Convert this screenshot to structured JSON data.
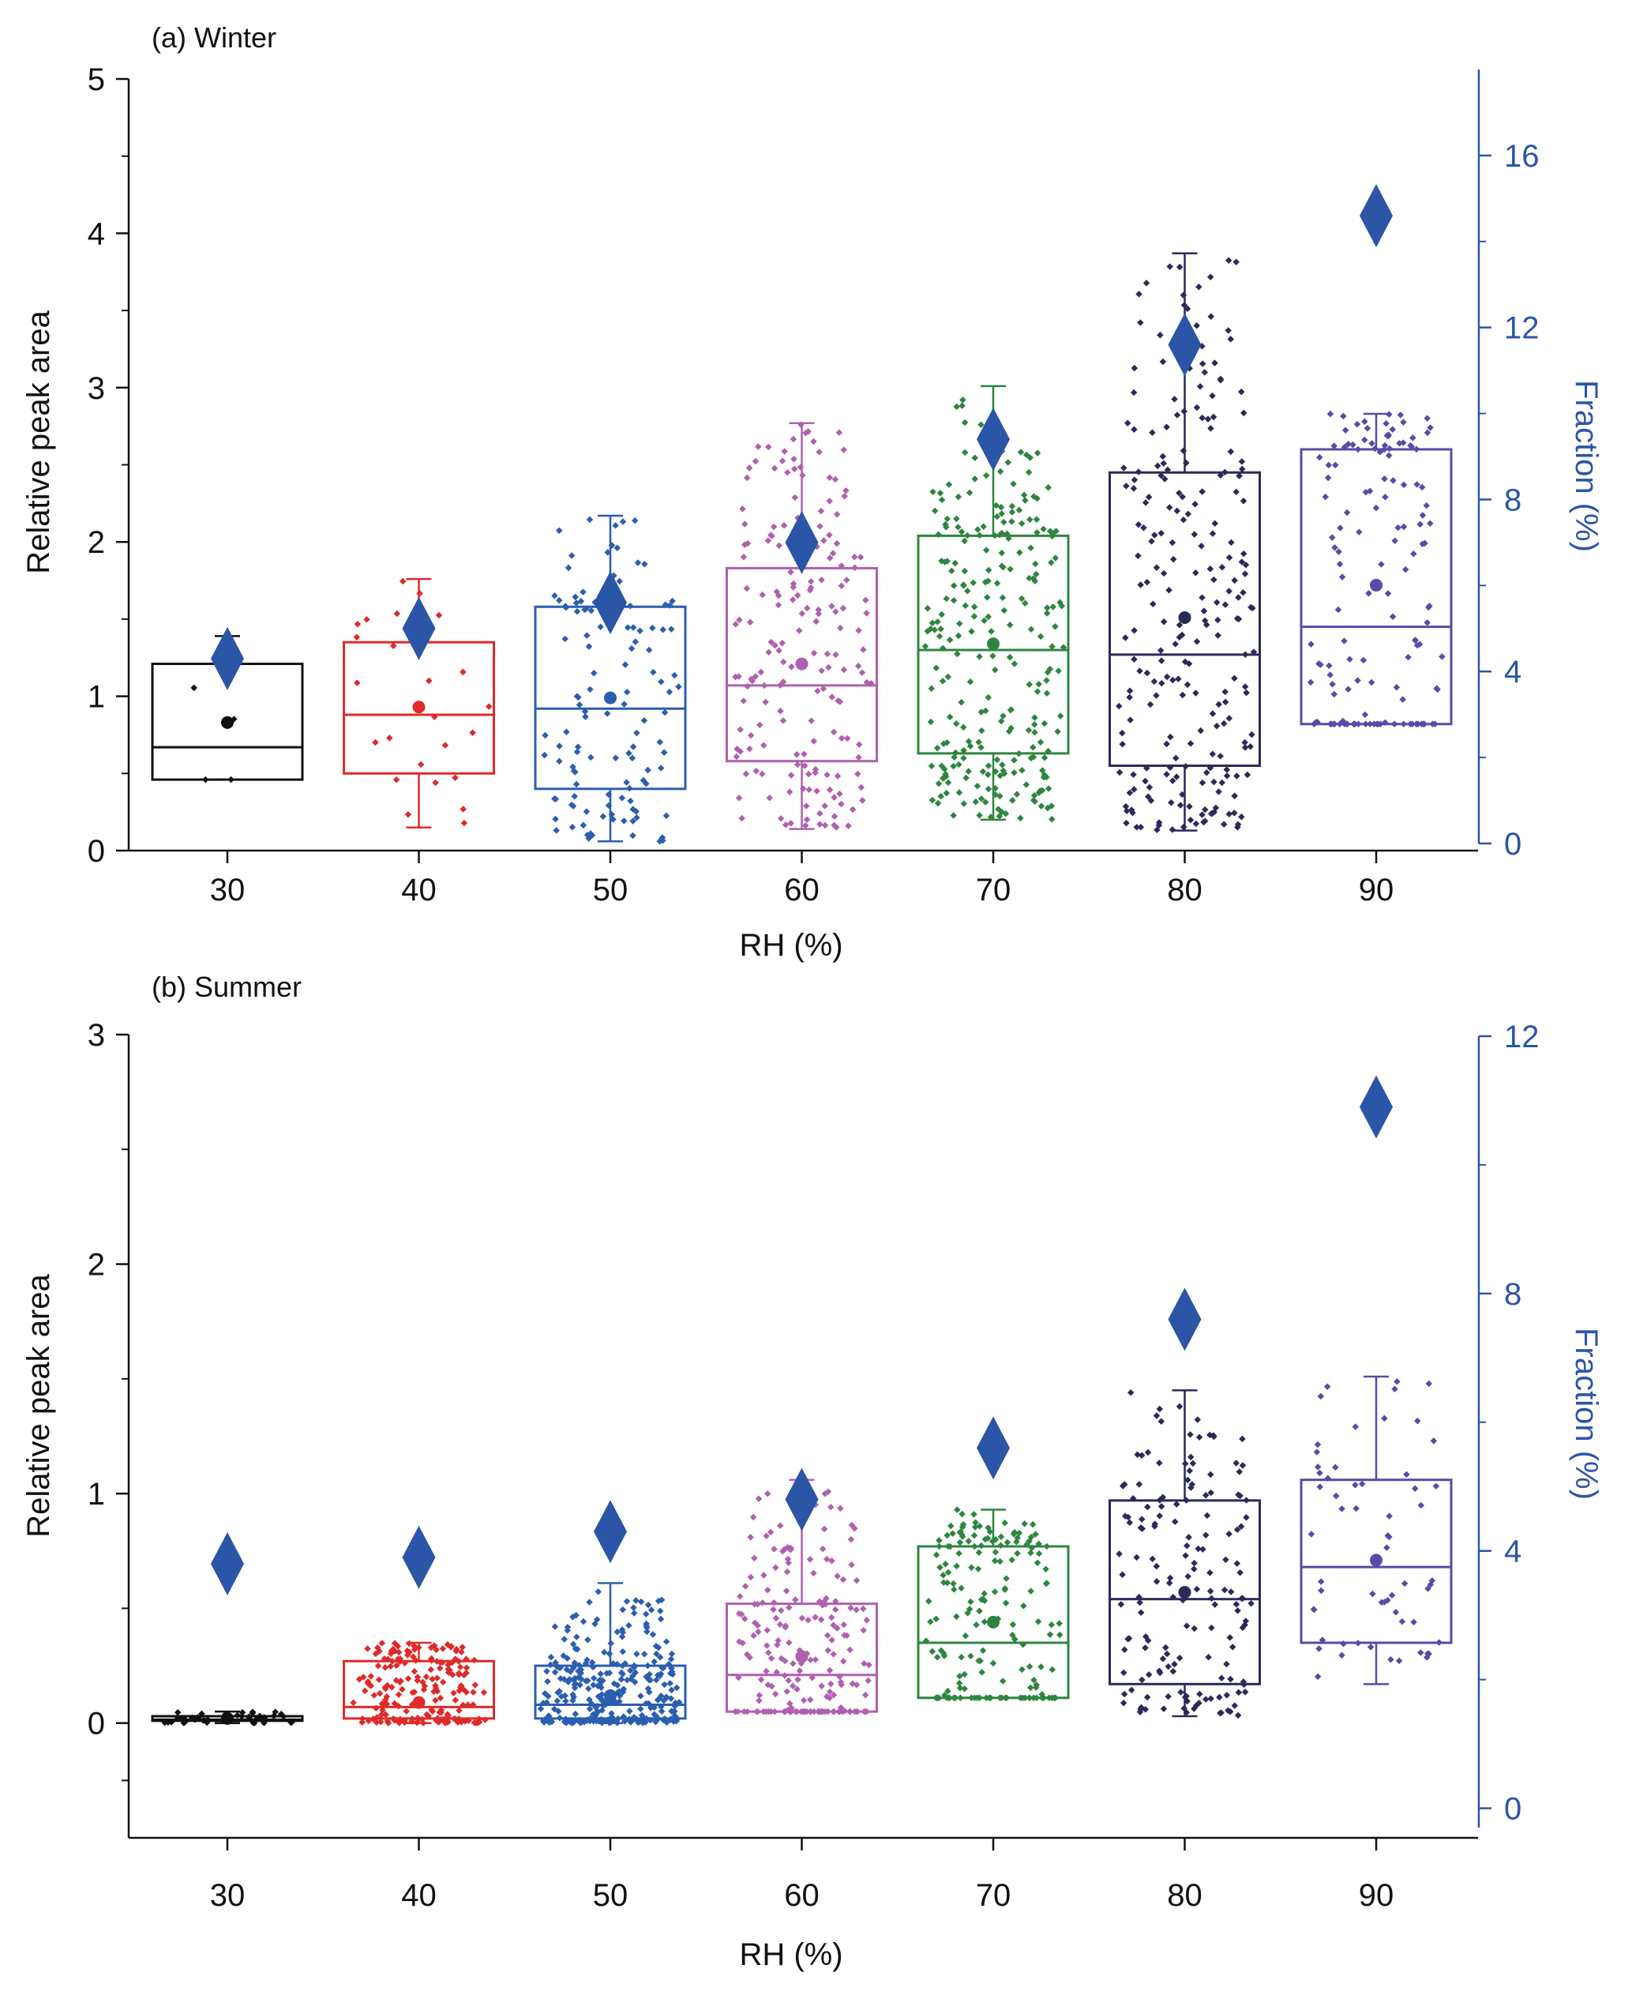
{
  "figure": {
    "colors": {
      "axis": "#111111",
      "right_axis": "#2b55a6",
      "diamond": "#2b55a6",
      "categories": [
        "#111111",
        "#e02a2a",
        "#2b5eb0",
        "#b060b0",
        "#2e8540",
        "#2a2a5a",
        "#5a4aa8"
      ]
    }
  },
  "chart_data": [
    {
      "id": "winter",
      "type": "box",
      "panel_label": "(a) Winter",
      "title": "(a) Winter",
      "xlabel": "RH (%)",
      "ylabel": "Relative peak area",
      "y2label": "Fraction (%)",
      "categories": [
        "30",
        "40",
        "50",
        "60",
        "70",
        "80",
        "90"
      ],
      "ylim": [
        0,
        5
      ],
      "y_ticks": [
        0,
        1,
        2,
        3,
        4,
        5
      ],
      "y_tick_labels": [
        "0",
        "1",
        "2",
        "3",
        "4",
        "5"
      ],
      "y2lim": [
        0,
        18
      ],
      "y2_ticks": [
        0,
        4,
        8,
        12,
        16
      ],
      "y2_tick_labels": [
        "0",
        "4",
        "8",
        "12",
        "16"
      ],
      "series": [
        {
          "name": "Relative peak area",
          "type": "box",
          "q1": [
            0.46,
            0.5,
            0.4,
            0.58,
            0.63,
            0.55,
            0.82
          ],
          "median": [
            0.67,
            0.88,
            0.92,
            1.07,
            1.3,
            1.27,
            1.45
          ],
          "q3": [
            1.21,
            1.35,
            1.58,
            1.83,
            2.04,
            2.45,
            2.6
          ],
          "mean": [
            0.83,
            0.93,
            0.99,
            1.21,
            1.34,
            1.51,
            1.72
          ],
          "whisker_low": [
            0.46,
            0.15,
            0.06,
            0.14,
            0.2,
            0.13,
            0.82
          ],
          "whisker_high": [
            1.39,
            1.76,
            2.17,
            2.77,
            3.01,
            3.87,
            2.83
          ],
          "n_points": [
            4,
            25,
            120,
            180,
            260,
            230,
            140
          ]
        },
        {
          "name": "Fraction (%)",
          "type": "scatter",
          "marker": "diamond",
          "axis": "right",
          "values": [
            4.3,
            5.0,
            5.6,
            7.0,
            9.4,
            11.6,
            14.6
          ]
        }
      ]
    },
    {
      "id": "summer",
      "type": "box",
      "panel_label": "(b) Summer",
      "title": "(b) Summer",
      "xlabel": "RH (%)",
      "ylabel": "Relative peak area",
      "y2label": "Fraction (%)",
      "categories": [
        "30",
        "40",
        "50",
        "60",
        "70",
        "80",
        "90"
      ],
      "ylim": [
        -0.5,
        3
      ],
      "y_ticks": [
        0,
        1,
        2,
        3
      ],
      "y_tick_labels": [
        "0",
        "1",
        "2",
        "3"
      ],
      "y2lim": [
        -0.3,
        12
      ],
      "y2_ticks": [
        0,
        4,
        8,
        12
      ],
      "y2_tick_labels": [
        "0",
        "4",
        "8",
        "12"
      ],
      "series": [
        {
          "name": "Relative peak area",
          "type": "box",
          "q1": [
            0.01,
            0.02,
            0.02,
            0.05,
            0.11,
            0.17,
            0.35
          ],
          "median": [
            0.015,
            0.07,
            0.08,
            0.21,
            0.35,
            0.54,
            0.68
          ],
          "q3": [
            0.03,
            0.27,
            0.25,
            0.52,
            0.77,
            0.97,
            1.06
          ],
          "mean": [
            0.02,
            0.09,
            0.12,
            0.29,
            0.44,
            0.57,
            0.71
          ],
          "whisker_low": [
            0.0,
            0.0,
            0.0,
            0.05,
            0.11,
            0.03,
            0.17
          ],
          "whisker_high": [
            0.05,
            0.35,
            0.61,
            1.06,
            0.93,
            1.45,
            1.51
          ],
          "n_points": [
            40,
            200,
            300,
            200,
            170,
            160,
            60
          ]
        },
        {
          "name": "Fraction (%)",
          "type": "scatter",
          "marker": "diamond",
          "axis": "right",
          "values": [
            3.8,
            3.9,
            4.3,
            4.8,
            5.6,
            7.6,
            10.9
          ]
        }
      ]
    }
  ]
}
